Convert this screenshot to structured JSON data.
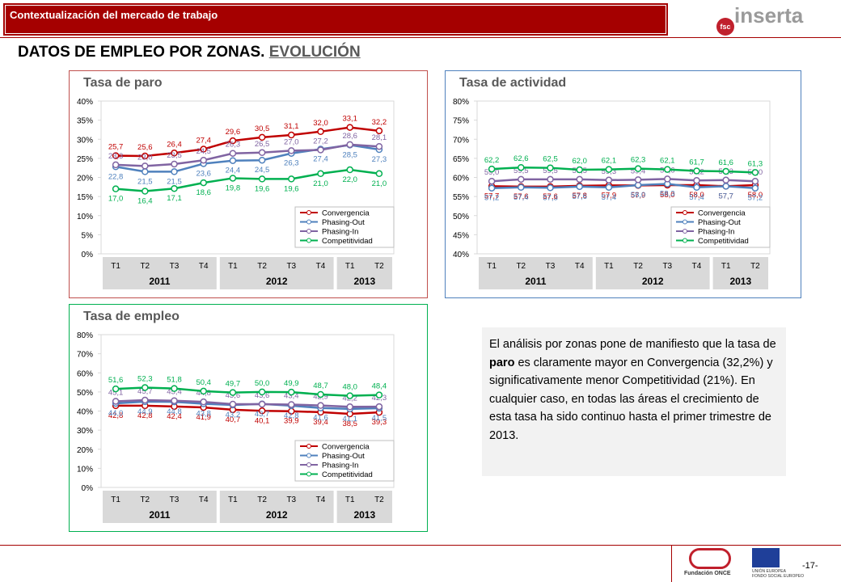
{
  "header": {
    "section": "Contextualización del mercado de trabajo",
    "title": "DATOS DE EMPLEO POR ZONAS.",
    "title_link": "EVOLUCIÓN"
  },
  "logos": {
    "inserta": "inserta",
    "fsc": "fsc",
    "once": "Fundación ONCE",
    "eu": "UNIÓN EUROPEA",
    "fse": "FONDO SOCIAL EUROPEO"
  },
  "page_number": "-17-",
  "text_box": {
    "part1": "El análisis por zonas pone de manifiesto que la tasa de ",
    "bold": "paro",
    "part2": " es claramente mayor en Convergencia (32,2%) y significativamente menor Competitividad (21%). En cualquier caso, en todas las áreas el crecimiento de esta tasa ha sido continuo hasta el primer trimestre de 2013."
  },
  "chart_data": [
    {
      "type": "line",
      "title": "Tasa de paro",
      "categories": [
        "T1",
        "T2",
        "T3",
        "T4",
        "T1",
        "T2",
        "T3",
        "T4",
        "T1",
        "T2"
      ],
      "groups": [
        "2011",
        "2012",
        "2013"
      ],
      "ylim": [
        0,
        40
      ],
      "yticks": [
        {
          "value": 0,
          "label": "0%"
        },
        {
          "value": 5,
          "label": "5%"
        },
        {
          "value": 10,
          "label": "10%"
        },
        {
          "value": 15,
          "label": "15%"
        },
        {
          "value": 20,
          "label": "20%"
        },
        {
          "value": 25,
          "label": "25%"
        },
        {
          "value": 30,
          "label": "30%"
        },
        {
          "value": 35,
          "label": "35%"
        },
        {
          "value": 40,
          "label": "40%"
        }
      ],
      "legend": "lower right",
      "series": [
        {
          "name": "Convergencia",
          "color": "#c00000",
          "values": [
            25.7,
            25.6,
            26.4,
            27.4,
            29.6,
            30.5,
            31.1,
            32.0,
            33.1,
            32.2
          ],
          "value_labels": [
            "25,7",
            "25,6",
            "26,4",
            "27,4",
            "29,6",
            "30,5",
            "31,1",
            "32,0",
            "33,1",
            "32,2"
          ]
        },
        {
          "name": "Phasing-Out",
          "color": "#4f81bd",
          "values": [
            22.8,
            21.5,
            21.5,
            23.6,
            24.4,
            24.5,
            26.3,
            27.4,
            28.5,
            27.3
          ],
          "value_labels": [
            "22,8",
            "21,5",
            "21,5",
            "23,6",
            "24,4",
            "24,5",
            "26,3",
            "27,4",
            "28,5",
            "27,3"
          ]
        },
        {
          "name": "Phasing-In",
          "color": "#8064a2",
          "values": [
            23.3,
            23.0,
            23.5,
            24.5,
            26.3,
            26.5,
            27.0,
            27.2,
            28.6,
            28.1
          ],
          "value_labels": [
            "23,3",
            "23,0",
            "23,5",
            "24,5",
            "26,3",
            "26,5",
            "27,0",
            "27,2",
            "28,6",
            "28,1"
          ]
        },
        {
          "name": "Competitividad",
          "color": "#00b050",
          "values": [
            17.0,
            16.4,
            17.1,
            18.6,
            19.8,
            19.6,
            19.6,
            21.0,
            22.0,
            21.0
          ],
          "value_labels": [
            "17,0",
            "16,4",
            "17,1",
            "18,6",
            "19,8",
            "19,6",
            "19,6",
            "21,0",
            "22,0",
            "21,0"
          ]
        }
      ]
    },
    {
      "type": "line",
      "title": "Tasa de actividad",
      "categories": [
        "T1",
        "T2",
        "T3",
        "T4",
        "T1",
        "T2",
        "T3",
        "T4",
        "T1",
        "T2"
      ],
      "groups": [
        "2011",
        "2012",
        "2013"
      ],
      "ylim": [
        40,
        80
      ],
      "yticks": [
        {
          "value": 40,
          "label": "40%"
        },
        {
          "value": 45,
          "label": "45%"
        },
        {
          "value": 50,
          "label": "50%"
        },
        {
          "value": 55,
          "label": "55%"
        },
        {
          "value": 60,
          "label": "60%"
        },
        {
          "value": 65,
          "label": "65%"
        },
        {
          "value": 70,
          "label": "70%"
        },
        {
          "value": 75,
          "label": "75%"
        },
        {
          "value": 80,
          "label": "80%"
        }
      ],
      "legend": "lower right",
      "series": [
        {
          "name": "Convergencia",
          "color": "#c00000",
          "values": [
            57.7,
            57.6,
            57.6,
            57.8,
            57.9,
            57.9,
            58.0,
            58.0,
            57.7,
            58.0
          ],
          "value_labels": [
            "57,7",
            "57,6",
            "57,6",
            "57,8",
            "57,9",
            "57,9",
            "58,0",
            "58,0",
            "57,7",
            "58,0"
          ]
        },
        {
          "name": "Phasing-Out",
          "color": "#4f81bd",
          "values": [
            57.2,
            57.4,
            57.3,
            57.6,
            57.4,
            58.0,
            58.3,
            57.4,
            57.7,
            57.2
          ],
          "value_labels": [
            "57,2",
            "57,4",
            "57,3",
            "57,6",
            "57,4",
            "58,0",
            "58,3",
            "57,4",
            "57,7",
            "57,2"
          ]
        },
        {
          "name": "Phasing-In",
          "color": "#8064a2",
          "values": [
            59.0,
            59.5,
            59.5,
            59.5,
            59.3,
            59.4,
            59.6,
            59.2,
            59.3,
            59.0
          ],
          "value_labels": [
            "59,0",
            "59,5",
            "59,5",
            "59,5",
            "59,3",
            "59,4",
            "59,6",
            "59,2",
            "59,3",
            "59,0"
          ]
        },
        {
          "name": "Competitividad",
          "color": "#00b050",
          "values": [
            62.2,
            62.6,
            62.5,
            62.0,
            62.1,
            62.3,
            62.1,
            61.7,
            61.6,
            61.3
          ],
          "value_labels": [
            "62,2",
            "62,6",
            "62,5",
            "62,0",
            "62,1",
            "62,3",
            "62,1",
            "61,7",
            "61,6",
            "61,3"
          ]
        }
      ]
    },
    {
      "type": "line",
      "title": "Tasa de empleo",
      "categories": [
        "T1",
        "T2",
        "T3",
        "T4",
        "T1",
        "T2",
        "T3",
        "T4",
        "T1",
        "T2"
      ],
      "groups": [
        "2011",
        "2012",
        "2013"
      ],
      "ylim": [
        0,
        80
      ],
      "yticks": [
        {
          "value": 0,
          "label": "0%"
        },
        {
          "value": 10,
          "label": "10%"
        },
        {
          "value": 20,
          "label": "20%"
        },
        {
          "value": 30,
          "label": "30%"
        },
        {
          "value": 40,
          "label": "40%"
        },
        {
          "value": 50,
          "label": "50%"
        },
        {
          "value": 60,
          "label": "60%"
        },
        {
          "value": 70,
          "label": "70%"
        },
        {
          "value": 80,
          "label": "80%"
        }
      ],
      "legend": "lower right",
      "series": [
        {
          "name": "Convergencia",
          "color": "#c00000",
          "values": [
            42.8,
            42.8,
            42.4,
            41.9,
            40.7,
            40.1,
            39.9,
            39.4,
            38.5,
            39.3
          ],
          "value_labels": [
            "42,8",
            "42,8",
            "42,4",
            "41,9",
            "40,7",
            "40,1",
            "39,9",
            "39,4",
            "38,5",
            "39,3"
          ]
        },
        {
          "name": "Phasing-Out",
          "color": "#4f81bd",
          "values": [
            44.0,
            44.9,
            44.8,
            43.8,
            43.2,
            43.7,
            42.8,
            41.6,
            41.1,
            41.5
          ],
          "value_labels": [
            "44,0",
            "44,9",
            "44,8",
            "43,8",
            "43,2",
            "43,7",
            "42,8",
            "41,6",
            "41,1",
            "41,5"
          ]
        },
        {
          "name": "Phasing-In",
          "color": "#8064a2",
          "values": [
            45.1,
            45.7,
            45.4,
            44.8,
            43.6,
            43.6,
            43.4,
            42.9,
            42.2,
            42.3
          ],
          "value_labels": [
            "45,1",
            "45,7",
            "45,4",
            "44,8",
            "43,6",
            "43,6",
            "43,4",
            "42,9",
            "42,2",
            "42,3"
          ]
        },
        {
          "name": "Competitividad",
          "color": "#00b050",
          "values": [
            51.6,
            52.3,
            51.8,
            50.4,
            49.7,
            50.0,
            49.9,
            48.7,
            48.0,
            48.4
          ],
          "value_labels": [
            "51,6",
            "52,3",
            "51,8",
            "50,4",
            "49,7",
            "50,0",
            "49,9",
            "48,7",
            "48,0",
            "48,4"
          ]
        }
      ]
    }
  ]
}
